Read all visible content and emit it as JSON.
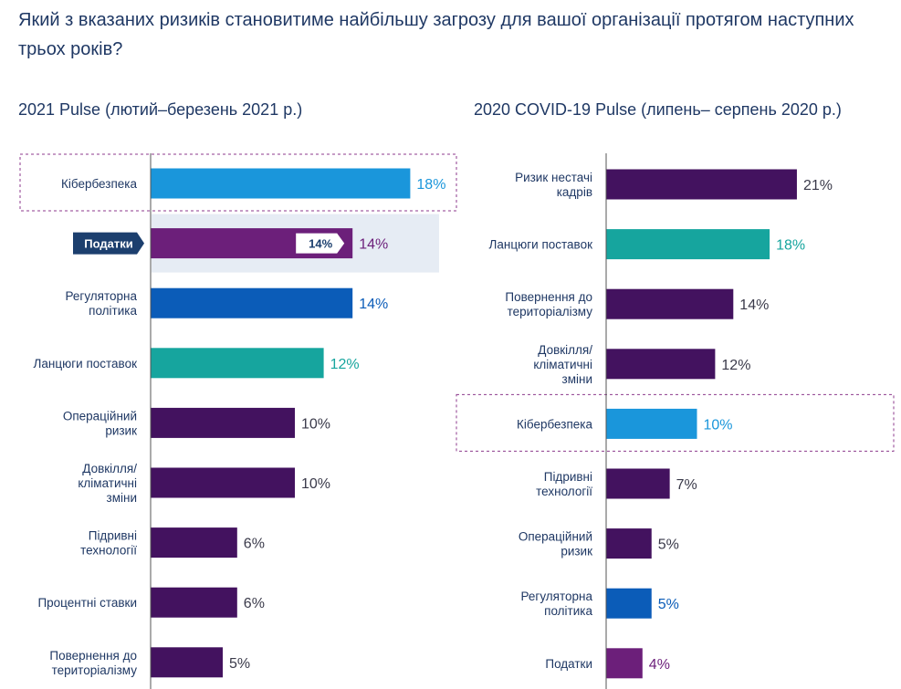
{
  "title": "Який з вказаних ризиків становитиме найбільшу загрозу для вашої організації протягом наступних трьох років?",
  "colors": {
    "dark_purple": "#43125f",
    "light_blue": "#1a96db",
    "teal": "#16a59e",
    "blue": "#0b5cb8",
    "purple": "#6c1f7a",
    "highlight_bg": "#e6ecf4",
    "dashed_outline": "#8c3a8c",
    "axis": "#555555"
  },
  "chart_data": [
    {
      "type": "bar",
      "orientation": "horizontal",
      "title": "2021 Pulse (лютий–березень 2021 р.)",
      "xlim": [
        0,
        25
      ],
      "categories": [
        [
          "Кібербезпека"
        ],
        [
          "Податки"
        ],
        [
          "Регуляторна",
          "політика"
        ],
        [
          "Ланцюги поставок"
        ],
        [
          "Операційний",
          "ризик"
        ],
        [
          "Довкілля/",
          "кліматичні",
          "зміни"
        ],
        [
          "Підривні",
          "технології"
        ],
        [
          "Процентні ставки"
        ],
        [
          "Повернення до",
          "територіалізму"
        ]
      ],
      "values": [
        18,
        14,
        14,
        12,
        10,
        10,
        6,
        6,
        5
      ],
      "value_labels": [
        "18%",
        "14%",
        "14%",
        "12%",
        "10%",
        "10%",
        "6%",
        "6%",
        "5%"
      ],
      "bar_colors": [
        "light_blue",
        "purple",
        "blue",
        "teal",
        "dark_purple",
        "dark_purple",
        "dark_purple",
        "dark_purple",
        "dark_purple"
      ],
      "outlined_category": 0,
      "hovered_category": 1,
      "tooltip": {
        "category": "Податки",
        "value_label": "14%"
      }
    },
    {
      "type": "bar",
      "orientation": "horizontal",
      "title": "2020 COVID-19 Pulse (липень– серпень 2020 р.)",
      "xlim": [
        0,
        25
      ],
      "categories": [
        [
          "Ризик нестачі",
          "кадрів"
        ],
        [
          "Ланцюги поставок"
        ],
        [
          "Повернення до",
          "територіалізму"
        ],
        [
          "Довкілля/",
          "кліматичні",
          "зміни"
        ],
        [
          "Кібербезпека"
        ],
        [
          "Підривні",
          "технології"
        ],
        [
          "Операційний",
          "ризик"
        ],
        [
          "Регуляторна",
          "політика"
        ],
        [
          "Податки"
        ]
      ],
      "values": [
        21,
        18,
        14,
        12,
        10,
        7,
        5,
        5,
        4
      ],
      "value_labels": [
        "21%",
        "18%",
        "14%",
        "12%",
        "10%",
        "7%",
        "5%",
        "5%",
        "4%"
      ],
      "bar_colors": [
        "dark_purple",
        "teal",
        "dark_purple",
        "dark_purple",
        "light_blue",
        "dark_purple",
        "dark_purple",
        "blue",
        "purple"
      ],
      "outlined_category": 4
    }
  ]
}
